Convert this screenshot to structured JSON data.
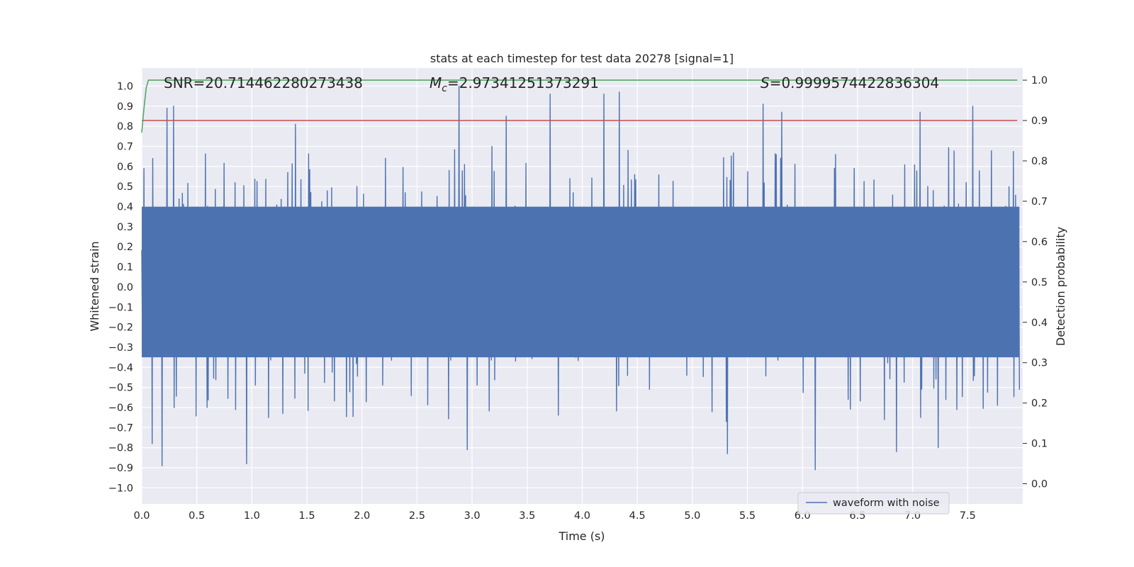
{
  "chart_data": {
    "type": "line",
    "title": "stats at each timestep for test data 20278 [signal=1]",
    "xlabel": "Time (s)",
    "ylabel": "Whitened strain",
    "ylabel_right": "Detection probability",
    "xlim": [
      0.0,
      8.0
    ],
    "ylim": [
      -1.08,
      1.09
    ],
    "ylim_right": [
      -0.05,
      1.03
    ],
    "x_ticks": [
      "0.0",
      "0.5",
      "1.0",
      "1.5",
      "2.0",
      "2.5",
      "3.0",
      "3.5",
      "4.0",
      "4.5",
      "5.0",
      "5.5",
      "6.0",
      "6.5",
      "7.0",
      "7.5"
    ],
    "y_ticks": [
      "1.0",
      "0.9",
      "0.8",
      "0.7",
      "0.6",
      "0.5",
      "0.4",
      "0.3",
      "0.2",
      "0.1",
      "0.0",
      "−0.1",
      "−0.2",
      "−0.3",
      "−0.4",
      "−0.5",
      "−0.6",
      "−0.7",
      "−0.8",
      "−0.9",
      "−1.0"
    ],
    "y_ticks_right": [
      "1.0",
      "0.9",
      "0.8",
      "0.7",
      "0.6",
      "0.5",
      "0.4",
      "0.3",
      "0.2",
      "0.1",
      "0.0"
    ],
    "annotations": {
      "snr": "SNR=20.714462280273438",
      "mc_symbol": "M",
      "mc_subscript": "c",
      "mc_value": "=2.97341251373291",
      "s_symbol": "S",
      "s_value": "=0.9999574422836304"
    },
    "legend": {
      "label": "waveform with noise",
      "placement": "lower-right"
    },
    "grid": true,
    "colors": {
      "waveform": "#4c72b0",
      "threshold": "#c44e52",
      "probability": "#55a868",
      "background": "#eaeaf2",
      "grid": "#ffffff"
    },
    "waveform": {
      "name": "waveform with noise",
      "duration": 7.97,
      "samples": 1600,
      "seed": 20278,
      "typical_max": 0.4,
      "typical_min": -0.35,
      "peaks_high": [
        [
          0.23,
          0.89
        ],
        [
          0.29,
          0.9
        ],
        [
          1.4,
          0.81
        ],
        [
          2.88,
          1.0
        ],
        [
          3.31,
          0.85
        ],
        [
          3.71,
          0.96
        ],
        [
          4.2,
          0.96
        ],
        [
          4.34,
          0.97
        ],
        [
          5.64,
          0.91
        ],
        [
          5.81,
          0.87
        ],
        [
          7.07,
          0.87
        ],
        [
          7.55,
          0.9
        ],
        [
          0.02,
          0.59
        ],
        [
          0.1,
          0.64
        ]
      ],
      "peaks_low": [
        [
          0.18,
          -0.89
        ],
        [
          0.95,
          -0.88
        ],
        [
          2.95,
          -0.81
        ],
        [
          5.32,
          -0.83
        ],
        [
          6.11,
          -0.91
        ],
        [
          6.85,
          -0.82
        ],
        [
          7.23,
          -0.8
        ],
        [
          0.09,
          -0.78
        ]
      ]
    },
    "threshold": {
      "name": "",
      "value": 0.9
    },
    "probability": {
      "name": "",
      "x": [
        0.0,
        0.02,
        0.04,
        0.06,
        0.09,
        7.95
      ],
      "y": [
        0.87,
        0.93,
        0.98,
        1.0,
        1.0,
        1.0
      ]
    }
  }
}
